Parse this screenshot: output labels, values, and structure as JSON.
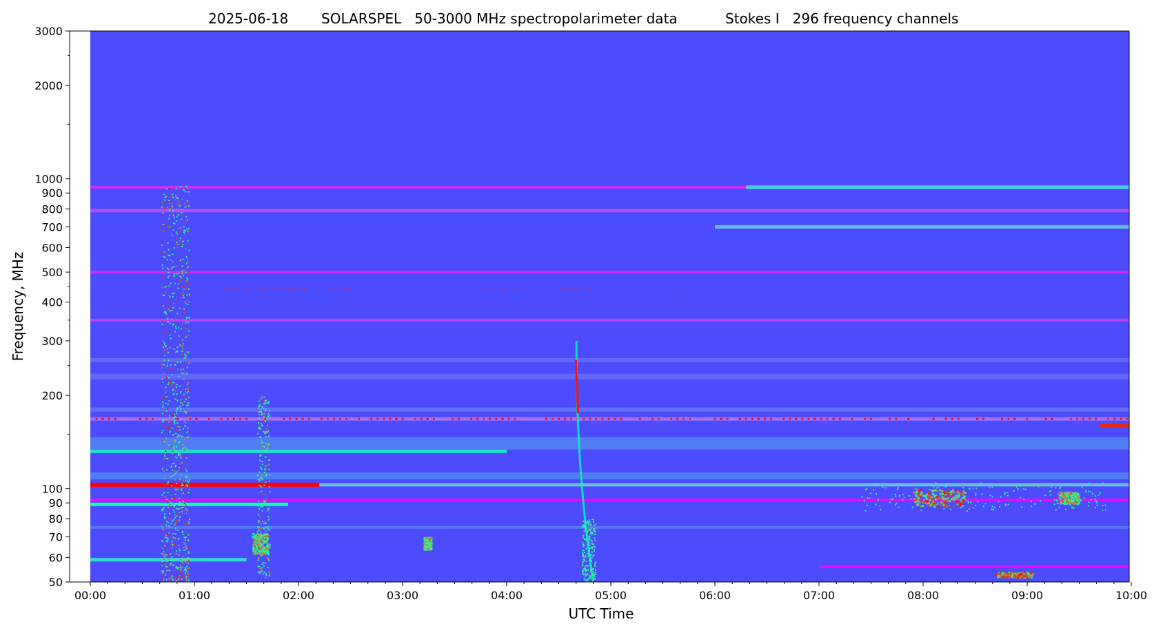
{
  "chart_data": {
    "type": "heatmap",
    "title_parts": {
      "date": "2025-06-18",
      "instrument": "SOLARSPEL   50-3000 MHz spectropolarimeter data",
      "stokes": "Stokes I   296 frequency channels"
    },
    "xlabel": "UTC Time",
    "ylabel": "Frequency, MHz",
    "x_axis": {
      "unit": "UTC hours",
      "range": [
        0.0,
        10.167
      ],
      "data_start": 0.0,
      "data_end": 10.167,
      "ticks": [
        {
          "value": 0,
          "label": "00:00"
        },
        {
          "value": 1,
          "label": "01:00"
        },
        {
          "value": 2,
          "label": "02:00"
        },
        {
          "value": 3,
          "label": "03:00"
        },
        {
          "value": 4,
          "label": "04:00"
        },
        {
          "value": 5,
          "label": "05:00"
        },
        {
          "value": 6,
          "label": "06:00"
        },
        {
          "value": 7,
          "label": "07:00"
        },
        {
          "value": 8,
          "label": "08:00"
        },
        {
          "value": 9,
          "label": "09:00"
        },
        {
          "value": 10,
          "label": "10:00"
        }
      ]
    },
    "y_axis": {
      "scale": "log",
      "unit": "MHz",
      "range": [
        50,
        3000
      ],
      "ticks": [
        {
          "value": 50,
          "label": "50"
        },
        {
          "value": 60,
          "label": "60"
        },
        {
          "value": 70,
          "label": "70"
        },
        {
          "value": 80,
          "label": "80"
        },
        {
          "value": 90,
          "label": "90"
        },
        {
          "value": 100,
          "label": "100"
        },
        {
          "value": 200,
          "label": "200"
        },
        {
          "value": 300,
          "label": "300"
        },
        {
          "value": 400,
          "label": "400"
        },
        {
          "value": 500,
          "label": "500"
        },
        {
          "value": 600,
          "label": "600"
        },
        {
          "value": 700,
          "label": "700"
        },
        {
          "value": 800,
          "label": "800"
        },
        {
          "value": 900,
          "label": "900"
        },
        {
          "value": 1000,
          "label": "1000"
        },
        {
          "value": 2000,
          "label": "2000"
        },
        {
          "value": 3000,
          "label": "3000"
        }
      ],
      "minor_ticks": [
        150,
        250,
        350,
        450,
        1500,
        2500
      ]
    },
    "colormap": {
      "name": "rainbow",
      "background": "#4c4cfe",
      "stops": [
        "#7f00ff",
        "#4c4cfe",
        "#1996f3",
        "#1ecbe1",
        "#7ffeb2",
        "#e1cb72",
        "#ff7f40",
        "#ff0000"
      ]
    },
    "features": {
      "horizontal_bands": [
        {
          "freq_mhz": 940,
          "t_start": 0.0,
          "t_end": 6.3,
          "level": 0.05,
          "desc": "interference band"
        },
        {
          "freq_mhz": 940,
          "t_start": 6.3,
          "t_end": 10.167,
          "level": 0.35
        },
        {
          "freq_mhz": 790,
          "t_start": 0.0,
          "t_end": 10.167,
          "level": 0.1
        },
        {
          "freq_mhz": 700,
          "t_start": 6.0,
          "t_end": 10.167,
          "level": 0.3
        },
        {
          "freq_mhz": 500,
          "t_start": 0.0,
          "t_end": 10.167,
          "level": 0.05
        },
        {
          "freq_mhz": 350,
          "t_start": 0.0,
          "t_end": 10.167,
          "level": 0.08
        },
        {
          "freq_mhz": 168,
          "t_start": 0.0,
          "t_end": 10.167,
          "level": 0.15
        },
        {
          "freq_mhz": 160,
          "t_start": 9.7,
          "t_end": 10.167,
          "level": 0.95
        },
        {
          "freq_mhz": 132,
          "t_start": 0.0,
          "t_end": 4.0,
          "level": 0.45
        },
        {
          "freq_mhz": 103,
          "t_start": 0.0,
          "t_end": 2.2,
          "level": 1.0
        },
        {
          "freq_mhz": 103,
          "t_start": 2.2,
          "t_end": 10.167,
          "level": 0.3
        },
        {
          "freq_mhz": 92,
          "t_start": 0.0,
          "t_end": 10.167,
          "level": 0.0
        },
        {
          "freq_mhz": 89,
          "t_start": 0.0,
          "t_end": 1.9,
          "level": 0.55
        },
        {
          "freq_mhz": 59,
          "t_start": 0.0,
          "t_end": 1.5,
          "level": 0.4
        },
        {
          "freq_mhz": 56,
          "t_start": 7.0,
          "t_end": 10.167,
          "level": 0.0
        }
      ],
      "storm_columns": [
        {
          "t_start": 0.68,
          "t_end": 0.95,
          "f_low": 50,
          "f_high": 950,
          "desc": "interference column"
        }
      ],
      "type_iii_burst": {
        "t_peak": 4.68,
        "f_high": 300,
        "f_low": 50,
        "drift": "fast"
      },
      "bursts": [
        {
          "t_start": 7.9,
          "t_end": 8.4,
          "f_low": 88,
          "f_high": 100,
          "level": 1.0
        },
        {
          "t_start": 9.3,
          "t_end": 9.5,
          "f_low": 90,
          "f_high": 98,
          "level": 0.9
        },
        {
          "t_start": 1.55,
          "t_end": 1.7,
          "f_low": 62,
          "f_high": 72,
          "level": 0.9
        },
        {
          "t_start": 3.2,
          "t_end": 3.27,
          "f_low": 64,
          "f_high": 70,
          "level": 0.9
        },
        {
          "t_start": 8.7,
          "t_end": 9.05,
          "f_low": 52,
          "f_high": 54,
          "level": 1.0
        }
      ]
    }
  }
}
